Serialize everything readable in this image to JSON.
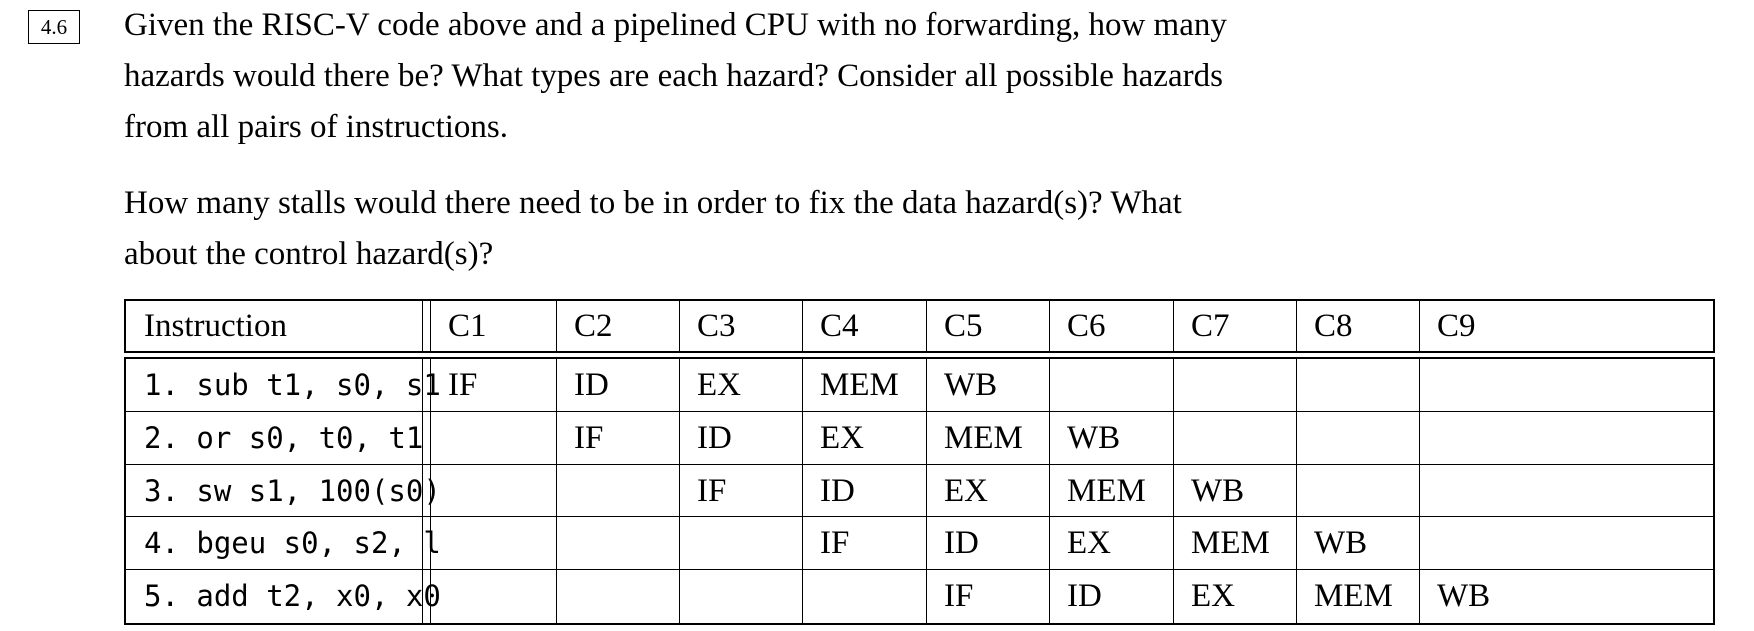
{
  "problem": {
    "number": "4.6",
    "paragraph1": [
      "Given the RISC-V code above and a pipelined CPU with no forwarding, how many",
      "hazards would there be? What types are each hazard? Consider all possible hazards",
      "from all pairs of instructions."
    ],
    "paragraph2": [
      "How many stalls would there need to be in order to fix the data hazard(s)? What",
      "about the control hazard(s)?"
    ]
  },
  "table": {
    "headers": [
      "Instruction",
      "C1",
      "C2",
      "C3",
      "C4",
      "C5",
      "C6",
      "C7",
      "C8",
      "C9"
    ],
    "rows": [
      {
        "instruction": "1. sub t1, s0, s1",
        "stages": [
          "IF",
          "ID",
          "EX",
          "MEM",
          "WB",
          "",
          "",
          "",
          ""
        ]
      },
      {
        "instruction": "2. or s0, t0, t1",
        "stages": [
          "",
          "IF",
          "ID",
          "EX",
          "MEM",
          "WB",
          "",
          "",
          ""
        ]
      },
      {
        "instruction": "3. sw s1, 100(s0)",
        "stages": [
          "",
          "",
          "IF",
          "ID",
          "EX",
          "MEM",
          "WB",
          "",
          ""
        ]
      },
      {
        "instruction": "4. bgeu s0, s2, l",
        "stages": [
          "",
          "",
          "",
          "IF",
          "ID",
          "EX",
          "MEM",
          "WB",
          ""
        ]
      },
      {
        "instruction": "5. add t2, x0, x0",
        "stages": [
          "",
          "",
          "",
          "",
          "IF",
          "ID",
          "EX",
          "MEM",
          "WB"
        ]
      }
    ]
  }
}
